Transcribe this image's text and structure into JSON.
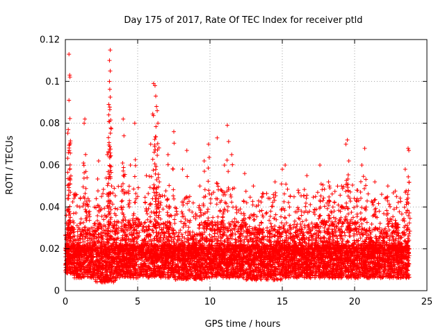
{
  "chart_data": {
    "type": "scatter",
    "title": "Day 175 of 2017, Rate Of TEC Index for receiver ptld",
    "xlabel": "GPS time / hours",
    "ylabel": "ROTI / TECUs",
    "xlim": [
      0,
      25
    ],
    "ylim": [
      0,
      0.12
    ],
    "xticks": [
      0,
      5,
      10,
      15,
      20,
      25
    ],
    "xtick_labels": [
      "0",
      "5",
      "10",
      "15",
      "20",
      "25"
    ],
    "yticks": [
      0,
      0.02,
      0.04,
      0.06,
      0.08,
      0.1,
      0.12
    ],
    "ytick_labels": [
      "0",
      "0.02",
      "0.04",
      "0.06",
      "0.08",
      "0.1",
      "0.12"
    ],
    "grid": true,
    "marker": "+",
    "color": "#ff0000",
    "series": [
      {
        "name": "ROTI",
        "x": [
          0.1,
          0.15,
          0.2,
          0.25,
          0.25,
          0.3,
          0.3,
          0.35,
          0.4,
          0.5,
          0.6,
          0.8,
          1.0,
          1.3,
          1.35,
          1.5,
          1.7,
          2.0,
          2.3,
          2.5,
          2.7,
          2.9,
          3.0,
          3.0,
          3.05,
          3.05,
          3.1,
          3.1,
          3.2,
          3.5,
          3.8,
          4.0,
          4.05,
          4.2,
          4.5,
          4.8,
          5.0,
          5.3,
          5.6,
          5.9,
          6.1,
          6.2,
          6.25,
          6.3,
          6.35,
          6.4,
          6.5,
          6.8,
          7.1,
          7.2,
          7.5,
          7.8,
          8.1,
          8.4,
          8.6,
          8.8,
          9.0,
          9.3,
          9.6,
          9.9,
          10.2,
          10.5,
          10.8,
          11.0,
          11.2,
          11.5,
          11.8,
          12.1,
          12.4,
          12.7,
          13.0,
          13.3,
          13.6,
          13.9,
          14.2,
          14.5,
          14.8,
          15.0,
          15.2,
          15.5,
          15.8,
          16.1,
          16.4,
          16.7,
          17.0,
          17.3,
          17.6,
          17.9,
          18.2,
          18.5,
          18.8,
          19.1,
          19.4,
          19.5,
          19.6,
          19.9,
          20.2,
          20.5,
          20.7,
          20.8,
          21.1,
          21.4,
          21.7,
          22.0,
          22.3,
          22.6,
          22.9,
          23.2,
          23.5,
          23.7,
          23.75
        ],
        "y": [
          0.015,
          0.044,
          0.077,
          0.091,
          0.113,
          0.103,
          0.058,
          0.035,
          0.022,
          0.03,
          0.046,
          0.018,
          0.04,
          0.08,
          0.082,
          0.054,
          0.02,
          0.032,
          0.062,
          0.045,
          0.018,
          0.065,
          0.084,
          0.089,
          0.1,
          0.11,
          0.115,
          0.105,
          0.05,
          0.036,
          0.022,
          0.082,
          0.074,
          0.03,
          0.06,
          0.08,
          0.045,
          0.024,
          0.055,
          0.07,
          0.099,
          0.098,
          0.093,
          0.088,
          0.086,
          0.08,
          0.052,
          0.03,
          0.065,
          0.04,
          0.076,
          0.02,
          0.058,
          0.067,
          0.045,
          0.028,
          0.022,
          0.05,
          0.062,
          0.07,
          0.035,
          0.073,
          0.048,
          0.06,
          0.079,
          0.065,
          0.04,
          0.024,
          0.056,
          0.035,
          0.05,
          0.028,
          0.045,
          0.02,
          0.038,
          0.052,
          0.03,
          0.058,
          0.06,
          0.04,
          0.025,
          0.048,
          0.033,
          0.055,
          0.022,
          0.045,
          0.06,
          0.03,
          0.052,
          0.04,
          0.025,
          0.05,
          0.07,
          0.072,
          0.062,
          0.035,
          0.048,
          0.06,
          0.068,
          0.04,
          0.025,
          0.052,
          0.038,
          0.028,
          0.05,
          0.032,
          0.045,
          0.022,
          0.058,
          0.068,
          0.067
        ]
      }
    ],
    "dense_band": [
      {
        "x0": 0.0,
        "x1": 0.5,
        "lo": 0.008,
        "hi": 0.03
      },
      {
        "x0": 0.5,
        "x1": 2.0,
        "lo": 0.006,
        "hi": 0.03
      },
      {
        "x0": 2.0,
        "x1": 3.5,
        "lo": 0.004,
        "hi": 0.032
      },
      {
        "x0": 3.5,
        "x1": 5.5,
        "lo": 0.006,
        "hi": 0.034
      },
      {
        "x0": 5.5,
        "x1": 7.5,
        "lo": 0.006,
        "hi": 0.033
      },
      {
        "x0": 7.5,
        "x1": 9.5,
        "lo": 0.005,
        "hi": 0.028
      },
      {
        "x0": 9.5,
        "x1": 12.5,
        "lo": 0.006,
        "hi": 0.033
      },
      {
        "x0": 12.5,
        "x1": 15.0,
        "lo": 0.005,
        "hi": 0.03
      },
      {
        "x0": 15.0,
        "x1": 17.5,
        "lo": 0.006,
        "hi": 0.032
      },
      {
        "x0": 17.5,
        "x1": 20.5,
        "lo": 0.006,
        "hi": 0.034
      },
      {
        "x0": 20.5,
        "x1": 22.5,
        "lo": 0.006,
        "hi": 0.03
      },
      {
        "x0": 22.5,
        "x1": 23.8,
        "lo": 0.006,
        "hi": 0.032
      }
    ]
  }
}
